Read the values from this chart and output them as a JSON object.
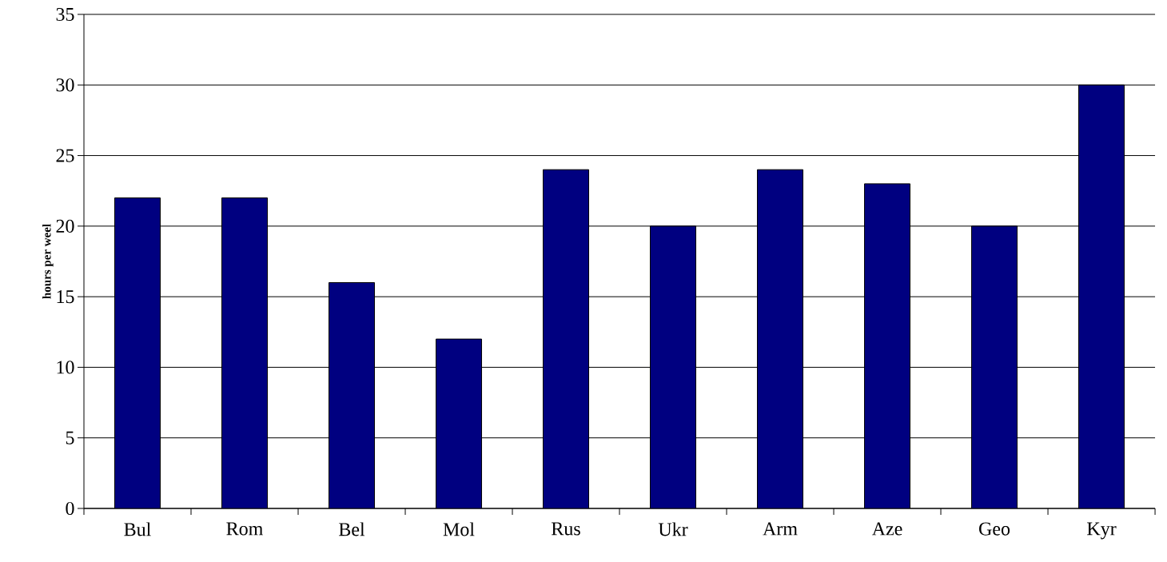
{
  "chart_data": {
    "type": "bar",
    "ylabel": "hours per weel",
    "categories": [
      "Bul",
      "Rom",
      "Bel",
      "Mol",
      "Rus",
      "Ukr",
      "Arm",
      "Aze",
      "Geo",
      "Kyr"
    ],
    "values": [
      22,
      22,
      16,
      12,
      24,
      20,
      24,
      23,
      20,
      30
    ],
    "color": "#000080",
    "ylim": [
      0,
      35
    ],
    "yticks": [
      0,
      5,
      10,
      15,
      20,
      25,
      30,
      35
    ],
    "grid": "y"
  }
}
